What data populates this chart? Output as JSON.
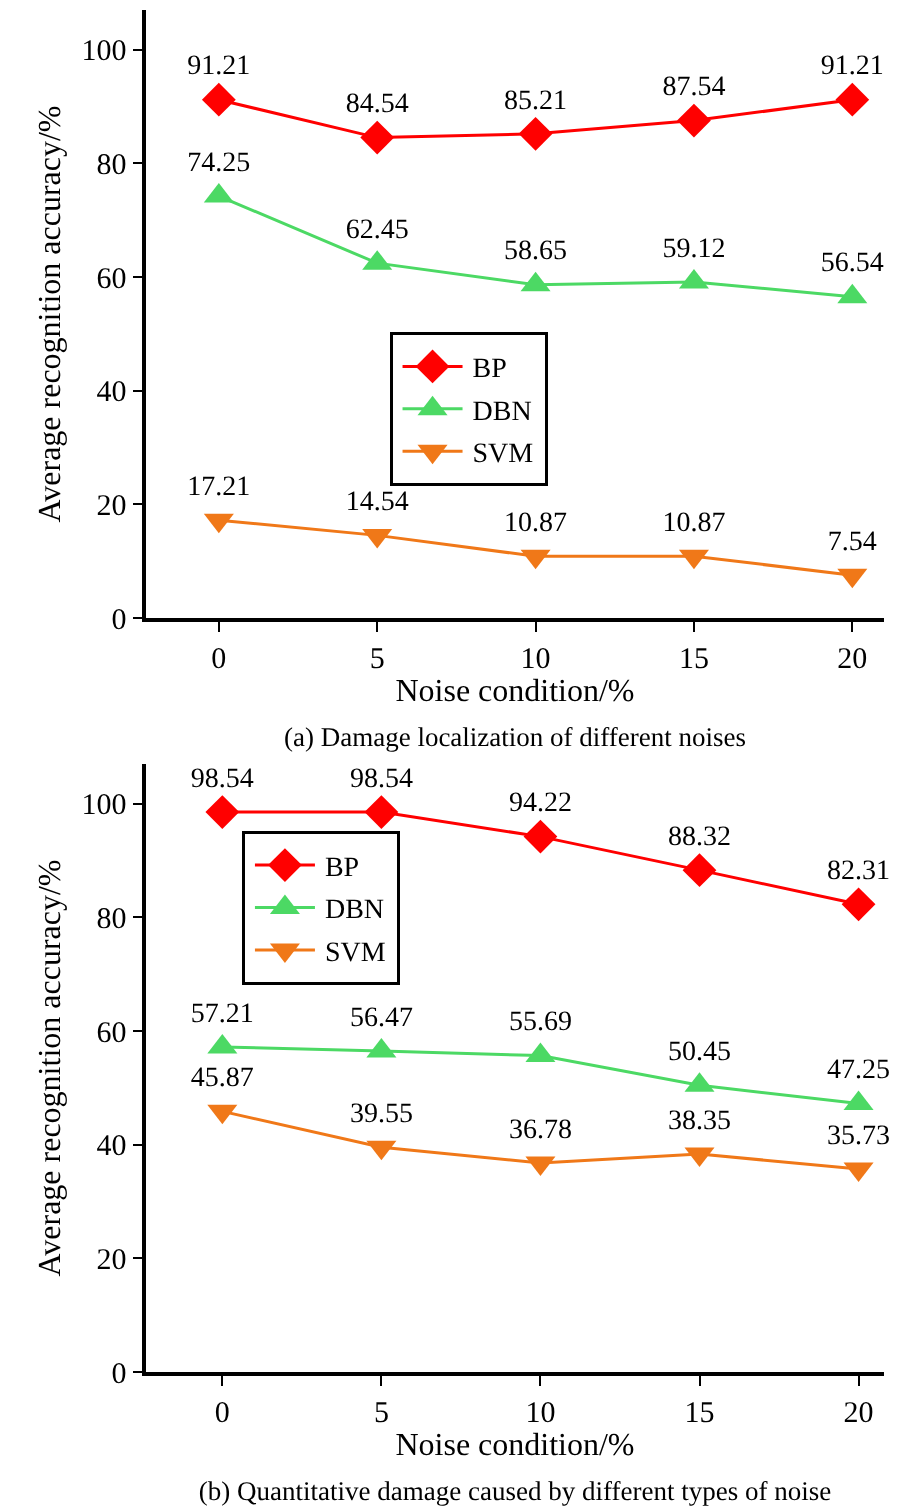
{
  "chart_data": [
    {
      "type": "line",
      "title": "(a) Damage localization of different noises",
      "xlabel": "Noise condition/%",
      "ylabel": "Average recognition accuracy/%",
      "x": [
        0,
        5,
        10,
        15,
        20
      ],
      "xlim": [
        -2.3,
        21
      ],
      "xticks": [
        0,
        5,
        10,
        15,
        20
      ],
      "ylim": [
        0,
        107
      ],
      "yticks": [
        0,
        20,
        40,
        60,
        80,
        100
      ],
      "grid": false,
      "legend": "center",
      "data_labels": true,
      "series": [
        {
          "name": "BP",
          "color": "#ff0000",
          "marker": "diamond",
          "values": [
            91.21,
            84.54,
            85.21,
            87.54,
            91.21
          ]
        },
        {
          "name": "DBN",
          "color": "#4cd964",
          "marker": "triangle",
          "values": [
            74.25,
            62.45,
            58.65,
            59.12,
            56.54
          ]
        },
        {
          "name": "SVM",
          "color": "#f07818",
          "marker": "triangle-down",
          "values": [
            17.21,
            14.54,
            10.87,
            10.87,
            7.54
          ]
        }
      ]
    },
    {
      "type": "line",
      "title": "(b) Quantitative damage caused by different types of noise",
      "xlabel": "Noise condition/%",
      "ylabel": "Average recognition accuracy/%",
      "x": [
        0,
        5,
        10,
        15,
        20
      ],
      "xlim": [
        -2.4,
        20.8
      ],
      "xticks": [
        0,
        5,
        10,
        15,
        20
      ],
      "ylim": [
        0,
        107
      ],
      "yticks": [
        0,
        20,
        40,
        60,
        80,
        100
      ],
      "grid": false,
      "legend": "top left",
      "data_labels": true,
      "series": [
        {
          "name": "BP",
          "color": "#ff0000",
          "marker": "diamond",
          "values": [
            98.54,
            98.54,
            94.22,
            88.32,
            82.31
          ]
        },
        {
          "name": "DBN",
          "color": "#4cd964",
          "marker": "triangle",
          "values": [
            57.21,
            56.47,
            55.69,
            50.45,
            47.25
          ]
        },
        {
          "name": "SVM",
          "color": "#f07818",
          "marker": "triangle-down",
          "values": [
            45.87,
            39.55,
            36.78,
            38.35,
            35.73
          ]
        }
      ]
    }
  ]
}
